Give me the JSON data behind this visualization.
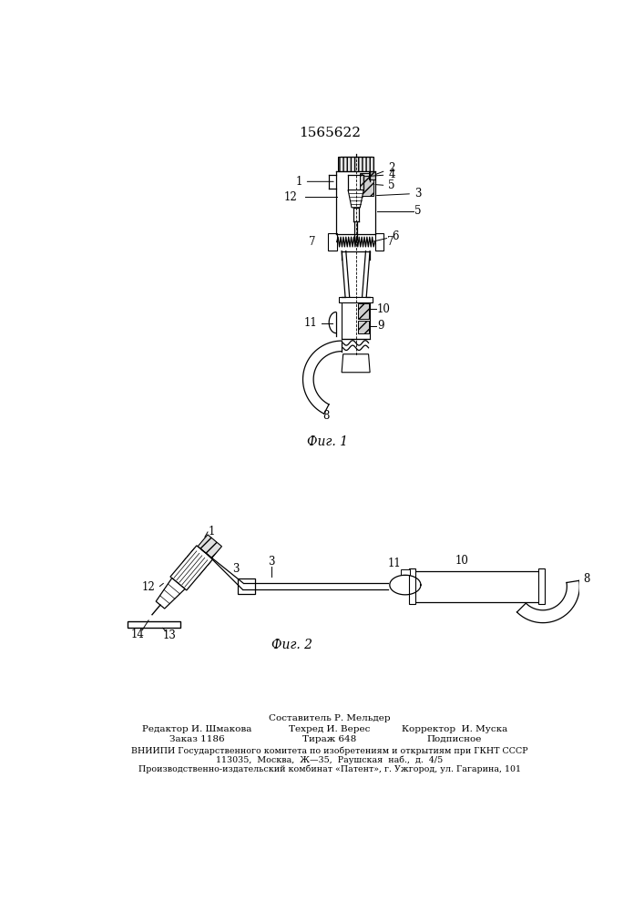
{
  "title": "1565622",
  "title_fontsize": 11,
  "fig1_label": "Фиг. 1",
  "fig2_label": "Фиг. 2",
  "bg_color": "#ffffff",
  "line_color": "#000000",
  "footer_lines": [
    "Составитель Р. Мельдер",
    "Редактор И. Шмакова",
    "Техред И. Верес",
    "Корректор  И. Муска",
    "Заказ 1186",
    "Тираж 648",
    "Подписное",
    "ВНИИПИ Государственного комитета по изобретениям и открытиям при ГКНТ СССР",
    "113035,  Москва,  Ж—35,  Раушская  наб.,  д.  4/5",
    "Производственно-издательский комбинат «Патент», г. Ужгород, ул. Гагарина, 101"
  ]
}
